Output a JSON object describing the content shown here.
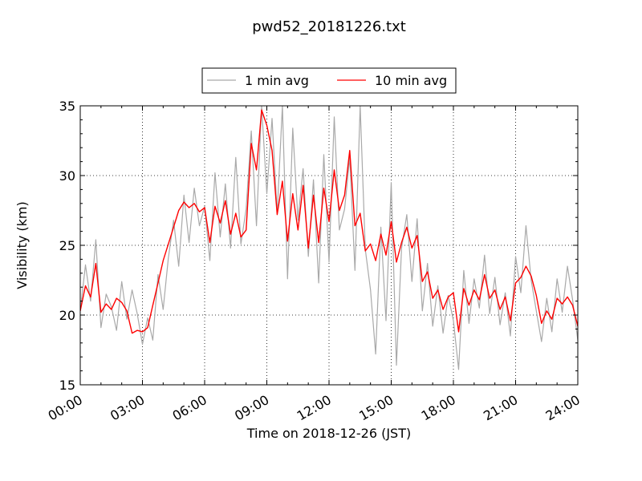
{
  "chart_data": {
    "type": "line",
    "title": "pwd52_20181226.txt",
    "xlabel": "Time on 2018-12-26 (JST)",
    "ylabel": "Visibility (km)",
    "x_ticks": [
      "00:00",
      "03:00",
      "06:00",
      "09:00",
      "12:00",
      "15:00",
      "18:00",
      "21:00",
      "24:00"
    ],
    "xlim_hours": [
      0,
      24
    ],
    "y_ticks": [
      15,
      20,
      25,
      30,
      35
    ],
    "ylim": [
      15,
      35
    ],
    "grid": true,
    "legend_position": "top-center",
    "series": [
      {
        "name": "1 min avg",
        "color": "#a9a9a9",
        "x_hours": [
          0,
          0.25,
          0.5,
          0.75,
          1,
          1.25,
          1.5,
          1.75,
          2,
          2.25,
          2.5,
          2.75,
          3,
          3.25,
          3.5,
          3.75,
          4,
          4.25,
          4.5,
          4.75,
          5,
          5.25,
          5.5,
          5.75,
          6,
          6.25,
          6.5,
          6.75,
          7,
          7.25,
          7.5,
          7.75,
          8,
          8.25,
          8.5,
          8.75,
          9,
          9.25,
          9.5,
          9.75,
          10,
          10.25,
          10.5,
          10.75,
          11,
          11.25,
          11.5,
          11.75,
          12,
          12.25,
          12.5,
          12.75,
          13,
          13.25,
          13.5,
          13.75,
          14,
          14.25,
          14.5,
          14.75,
          15,
          15.25,
          15.5,
          15.75,
          16,
          16.25,
          16.5,
          16.75,
          17,
          17.25,
          17.5,
          17.75,
          18,
          18.25,
          18.5,
          18.75,
          19,
          19.25,
          19.5,
          19.75,
          20,
          20.25,
          20.5,
          20.75,
          21,
          21.25,
          21.5,
          21.75,
          22,
          22.25,
          22.5,
          22.75,
          23,
          23.25,
          23.5,
          23.75,
          24
        ],
        "values": [
          20.3,
          23.6,
          21.0,
          25.4,
          19.1,
          21.5,
          20.6,
          18.9,
          22.4,
          19.7,
          21.8,
          20.1,
          17.9,
          19.8,
          18.2,
          22.9,
          20.4,
          24.1,
          26.8,
          23.5,
          28.6,
          25.2,
          29.1,
          26.4,
          27.8,
          23.9,
          30.2,
          25.6,
          29.4,
          24.8,
          31.3,
          25.1,
          27.6,
          33.2,
          26.4,
          35.0,
          28.7,
          34.1,
          27.3,
          35.0,
          22.6,
          33.4,
          26.8,
          30.5,
          24.2,
          29.7,
          22.3,
          31.5,
          23.8,
          34.2,
          26.1,
          27.6,
          31.3,
          23.2,
          35.0,
          24.7,
          21.8,
          17.2,
          26.3,
          19.6,
          29.5,
          16.4,
          24.8,
          27.2,
          22.4,
          26.9,
          20.3,
          23.7,
          19.2,
          22.1,
          18.7,
          21.4,
          19.6,
          16.1,
          23.2,
          19.4,
          22.6,
          20.5,
          24.3,
          20.1,
          22.7,
          19.3,
          21.6,
          18.5,
          24.2,
          21.6,
          26.4,
          22.5,
          20.3,
          18.1,
          21.2,
          18.8,
          22.6,
          20.2,
          23.5,
          21.1,
          18.2
        ]
      },
      {
        "name": "10 min avg",
        "color": "#ff0000",
        "x_hours": [
          0,
          0.25,
          0.5,
          0.75,
          1,
          1.25,
          1.5,
          1.75,
          2,
          2.25,
          2.5,
          2.75,
          3,
          3.25,
          3.5,
          3.75,
          4,
          4.25,
          4.5,
          4.75,
          5,
          5.25,
          5.5,
          5.75,
          6,
          6.25,
          6.5,
          6.75,
          7,
          7.25,
          7.5,
          7.75,
          8,
          8.25,
          8.5,
          8.75,
          9,
          9.25,
          9.5,
          9.75,
          10,
          10.25,
          10.5,
          10.75,
          11,
          11.25,
          11.5,
          11.75,
          12,
          12.25,
          12.5,
          12.75,
          13,
          13.25,
          13.5,
          13.75,
          14,
          14.25,
          14.5,
          14.75,
          15,
          15.25,
          15.5,
          15.75,
          16,
          16.25,
          16.5,
          16.75,
          17,
          17.25,
          17.5,
          17.75,
          18,
          18.25,
          18.5,
          18.75,
          19,
          19.25,
          19.5,
          19.75,
          20,
          20.25,
          20.5,
          20.75,
          21,
          21.25,
          21.5,
          21.75,
          22,
          22.25,
          22.5,
          22.75,
          23,
          23.25,
          23.5,
          23.75,
          24
        ],
        "values": [
          20.3,
          22.1,
          21.3,
          23.7,
          20.2,
          20.8,
          20.4,
          21.2,
          20.9,
          20.3,
          18.7,
          18.9,
          18.8,
          19.1,
          20.7,
          22.3,
          23.9,
          25.1,
          26.3,
          27.5,
          28.1,
          27.7,
          28.0,
          27.4,
          27.7,
          25.2,
          27.8,
          26.6,
          28.2,
          25.8,
          27.3,
          25.6,
          26.1,
          32.3,
          30.4,
          34.7,
          33.6,
          31.8,
          27.2,
          29.6,
          25.3,
          28.7,
          26.1,
          29.3,
          24.8,
          28.6,
          25.2,
          29.1,
          26.7,
          30.4,
          27.5,
          28.6,
          31.8,
          26.4,
          27.3,
          24.6,
          25.1,
          23.9,
          25.8,
          24.3,
          26.7,
          23.8,
          25.2,
          26.3,
          24.8,
          25.7,
          22.4,
          23.1,
          21.2,
          21.8,
          20.4,
          21.3,
          21.6,
          18.8,
          21.9,
          20.7,
          21.8,
          21.1,
          22.9,
          21.2,
          21.8,
          20.4,
          21.3,
          19.6,
          22.3,
          22.7,
          23.5,
          22.8,
          21.4,
          19.4,
          20.3,
          19.7,
          21.2,
          20.8,
          21.3,
          20.7,
          19.2
        ]
      }
    ]
  }
}
